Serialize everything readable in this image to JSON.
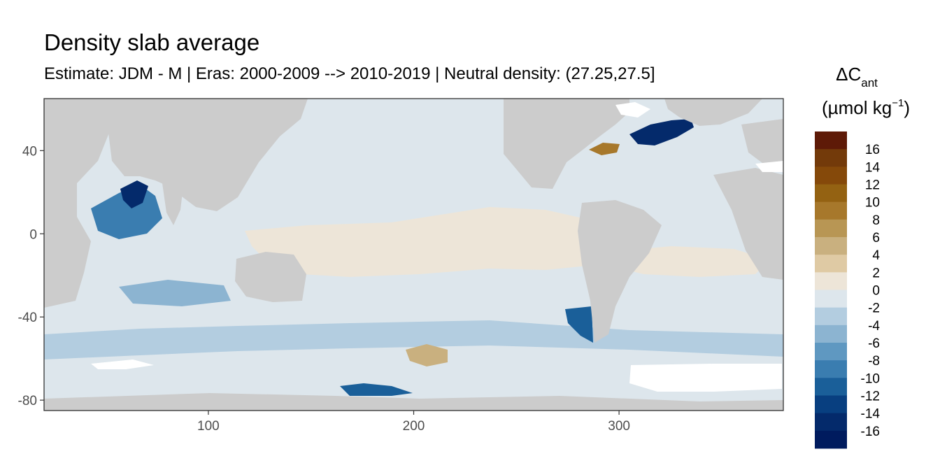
{
  "chart_data": {
    "type": "heatmap",
    "title": "Density slab average",
    "subtitle": "Estimate: JDM - M | Eras: 2000-2009 --> 2010-2019 | Neutral density: (27.25,27.5]",
    "xlabel": "",
    "ylabel": "",
    "xlim": [
      20,
      380
    ],
    "ylim": [
      -85,
      65
    ],
    "x_ticks": [
      100,
      200,
      300
    ],
    "y_ticks": [
      40,
      0,
      -40,
      -80
    ],
    "grid": false,
    "legend": {
      "position": "right",
      "title_main": "ΔC",
      "title_sub": "ant",
      "unit_prefix": "(µmol kg",
      "unit_exp": "−1",
      "unit_suffix": ")",
      "labels": [
        16,
        14,
        12,
        10,
        8,
        6,
        4,
        2,
        0,
        -2,
        -4,
        -6,
        -8,
        -10,
        -12,
        -14,
        -16
      ],
      "colors": [
        "#5e1a07",
        "#733a0a",
        "#85490a",
        "#946212",
        "#a7782b",
        "#b89654",
        "#c9b07f",
        "#dfcaa4",
        "#ede5d8",
        "#dde6ec",
        "#b3cde0",
        "#8cb4d1",
        "#5f98c1",
        "#3a7db0",
        "#1a5f99",
        "#083f80",
        "#042a6b",
        "#001b5e"
      ]
    },
    "colors": {
      "land": "#cccccc",
      "no_data": "#ffffff",
      "panel_border": "#333333"
    },
    "regions": [
      {
        "name": "background",
        "value": -1
      },
      {
        "name": "pacific-positive",
        "value": 1
      },
      {
        "name": "south-atlantic-positive",
        "value": 1
      },
      {
        "name": "southern-ocean-band",
        "value": -3
      },
      {
        "name": "arabian-sea",
        "value": -9
      },
      {
        "name": "arabian-sea-core",
        "value": -15
      },
      {
        "name": "labrador-sea",
        "value": -15
      },
      {
        "name": "north-atlantic-positive",
        "value": 9
      },
      {
        "name": "drake-passage",
        "value": -11
      },
      {
        "name": "ross-sea",
        "value": -11
      },
      {
        "name": "pacific-sector-positive",
        "value": 5
      },
      {
        "name": "australia-south",
        "value": -5
      }
    ]
  }
}
